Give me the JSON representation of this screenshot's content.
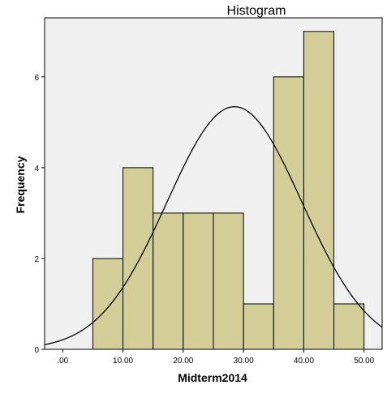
{
  "chart_data": {
    "type": "bar",
    "title": "Histogram",
    "xlabel": "Midterm2014",
    "ylabel": "Frequency",
    "xlim": [
      -3,
      53
    ],
    "ylim": [
      0,
      7.3
    ],
    "x_ticks": [
      {
        "value": 0,
        "label": ".00"
      },
      {
        "value": 10,
        "label": "10.00"
      },
      {
        "value": 20,
        "label": "20.00"
      },
      {
        "value": 30,
        "label": "30.00"
      },
      {
        "value": 40,
        "label": "40.00"
      },
      {
        "value": 50,
        "label": "50.00"
      }
    ],
    "y_ticks": [
      {
        "value": 0,
        "label": "0"
      },
      {
        "value": 2,
        "label": "2"
      },
      {
        "value": 4,
        "label": "4"
      },
      {
        "value": 6,
        "label": "6"
      }
    ],
    "bins": [
      {
        "start": 5,
        "end": 10,
        "count": 2
      },
      {
        "start": 10,
        "end": 15,
        "count": 4
      },
      {
        "start": 15,
        "end": 20,
        "count": 3
      },
      {
        "start": 20,
        "end": 25,
        "count": 3
      },
      {
        "start": 25,
        "end": 30,
        "count": 3
      },
      {
        "start": 30,
        "end": 35,
        "count": 1
      },
      {
        "start": 35,
        "end": 40,
        "count": 6
      },
      {
        "start": 40,
        "end": 45,
        "count": 7
      },
      {
        "start": 45,
        "end": 50,
        "count": 1
      }
    ],
    "normal_curve": {
      "mean": 28.5,
      "std_dev": 11.2,
      "n": 30,
      "bin_width": 5
    },
    "grid": false,
    "colors": {
      "bar_fill": "#d3ce97",
      "bar_stroke": "#000000",
      "plot_background": "#f0f0f0",
      "curve": "#000000"
    }
  }
}
